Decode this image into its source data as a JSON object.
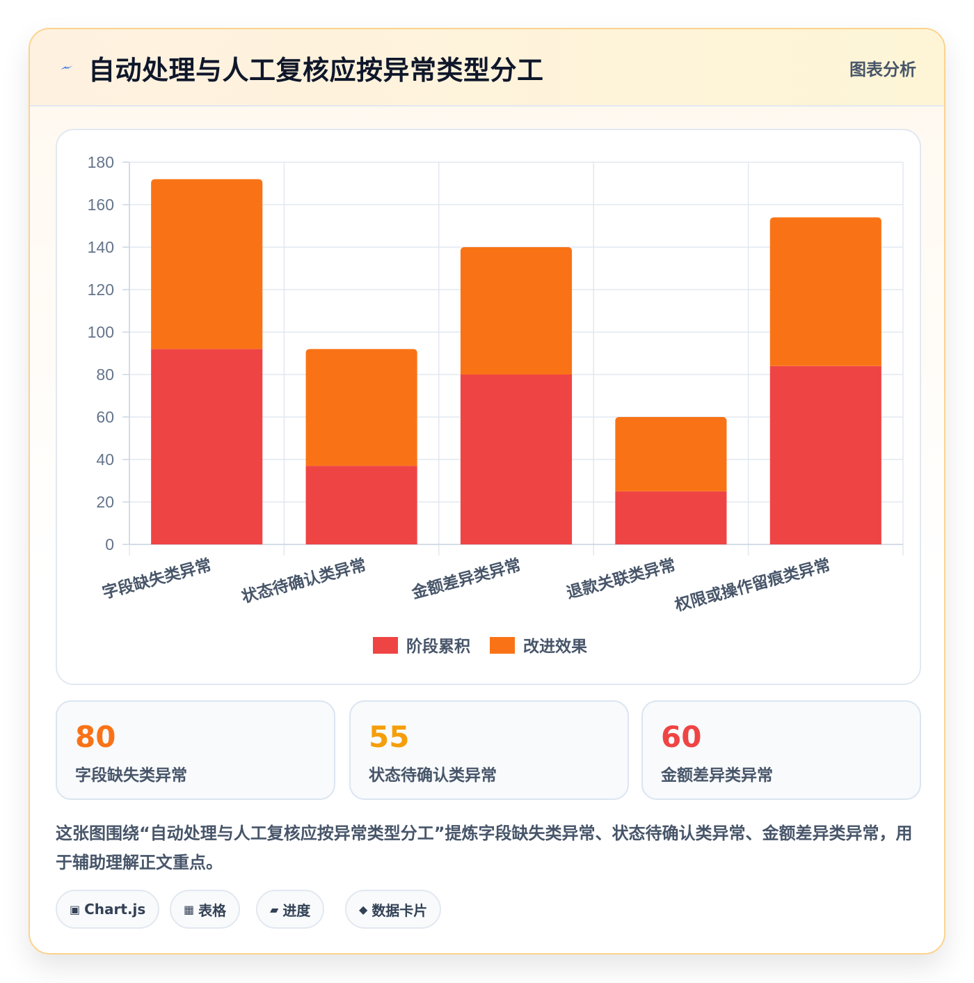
{
  "header": {
    "icon": "lightning-icon",
    "title": "自动处理与人工复核应按异常类型分工",
    "badge": "图表分析"
  },
  "chart_data": {
    "type": "bar",
    "stacked": true,
    "categories": [
      "字段缺失类异常",
      "状态待确认类异常",
      "金额差异类异常",
      "退款关联类异常",
      "权限或操作留痕类异常"
    ],
    "series": [
      {
        "name": "阶段累积",
        "color": "#ef4444",
        "values": [
          92,
          37,
          80,
          25,
          84
        ]
      },
      {
        "name": "改进效果",
        "color": "#f97316",
        "values": [
          80,
          55,
          60,
          35,
          70
        ]
      }
    ],
    "ylim": [
      0,
      180
    ],
    "yticks": [
      0,
      20,
      40,
      60,
      80,
      100,
      120,
      140,
      160,
      180
    ],
    "grid": true,
    "legend": "bottom"
  },
  "stats": [
    {
      "value": "80",
      "label": "字段缺失类异常",
      "color": "#f97316"
    },
    {
      "value": "55",
      "label": "状态待确认类异常",
      "color": "#f59e0b"
    },
    {
      "value": "60",
      "label": "金额差异类异常",
      "color": "#ef4444"
    }
  ],
  "description": "这张图围绕“自动处理与人工复核应按异常类型分工”提炼字段缺失类异常、状态待确认类异常、金额差异类异常，用于辅助理解正文重点。",
  "tags": [
    {
      "icon": "▣",
      "label": "Chart.js"
    },
    {
      "icon": "▦",
      "label": "表格"
    },
    {
      "icon": "▰",
      "label": "进度"
    },
    {
      "icon": "◆",
      "label": "数据卡片"
    }
  ]
}
